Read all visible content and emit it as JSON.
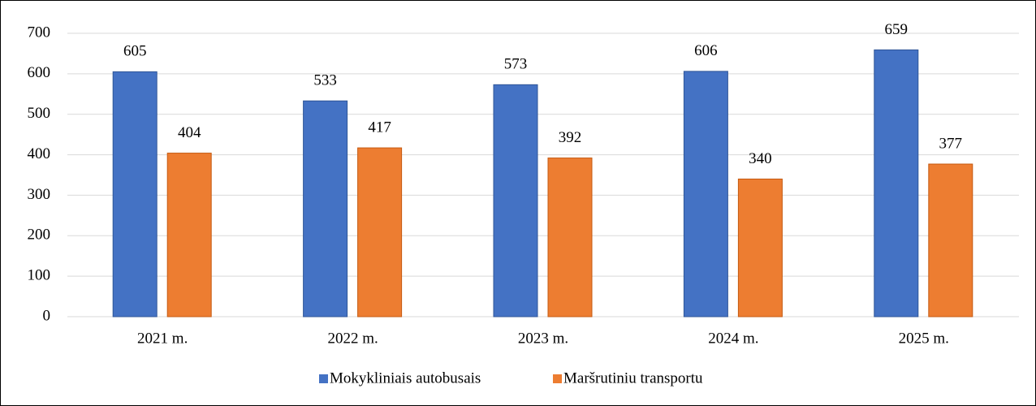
{
  "chart_data": {
    "type": "bar",
    "categories": [
      "2021 m.",
      "2022 m.",
      "2023 m.",
      "2024 m.",
      "2025 m."
    ],
    "series": [
      {
        "name": "Mokykliniais autobusais",
        "color": "#4472c4",
        "values": [
          605,
          533,
          573,
          606,
          659
        ]
      },
      {
        "name": "Maršrutiniu transportu",
        "color": "#ed7d31",
        "values": [
          404,
          417,
          392,
          340,
          377
        ]
      }
    ],
    "ylim": [
      0,
      700
    ],
    "yticks": [
      0,
      100,
      200,
      300,
      400,
      500,
      600,
      700
    ],
    "grid": true,
    "legend": "bottom"
  }
}
